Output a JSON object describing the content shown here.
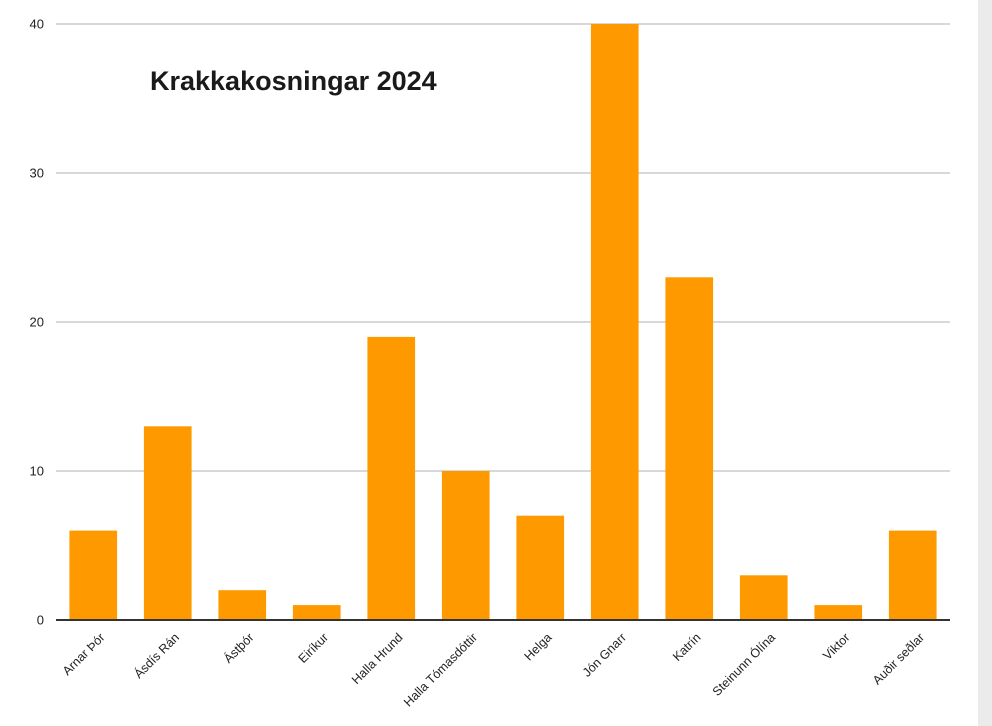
{
  "chart_data": {
    "type": "bar",
    "title": "Krakkakosningar 2024",
    "xlabel": "",
    "ylabel": "",
    "ylim": [
      0,
      40
    ],
    "yticks": [
      0,
      10,
      20,
      30,
      40
    ],
    "grid": true,
    "legend": "none",
    "bar_color": "#ff9900",
    "categories": [
      "Arnar Þór",
      "Ásdís Rán",
      "Ástþór",
      "Eiríkur",
      "Halla Hrund",
      "Halla Tómasdóttir",
      "Helga",
      "Jón Gnarr",
      "Katrín",
      "Steinunn Ólína",
      "Viktor",
      "Auðir seðlar"
    ],
    "values": [
      6,
      13,
      2,
      1,
      19,
      10,
      7,
      40,
      23,
      3,
      1,
      6
    ]
  }
}
